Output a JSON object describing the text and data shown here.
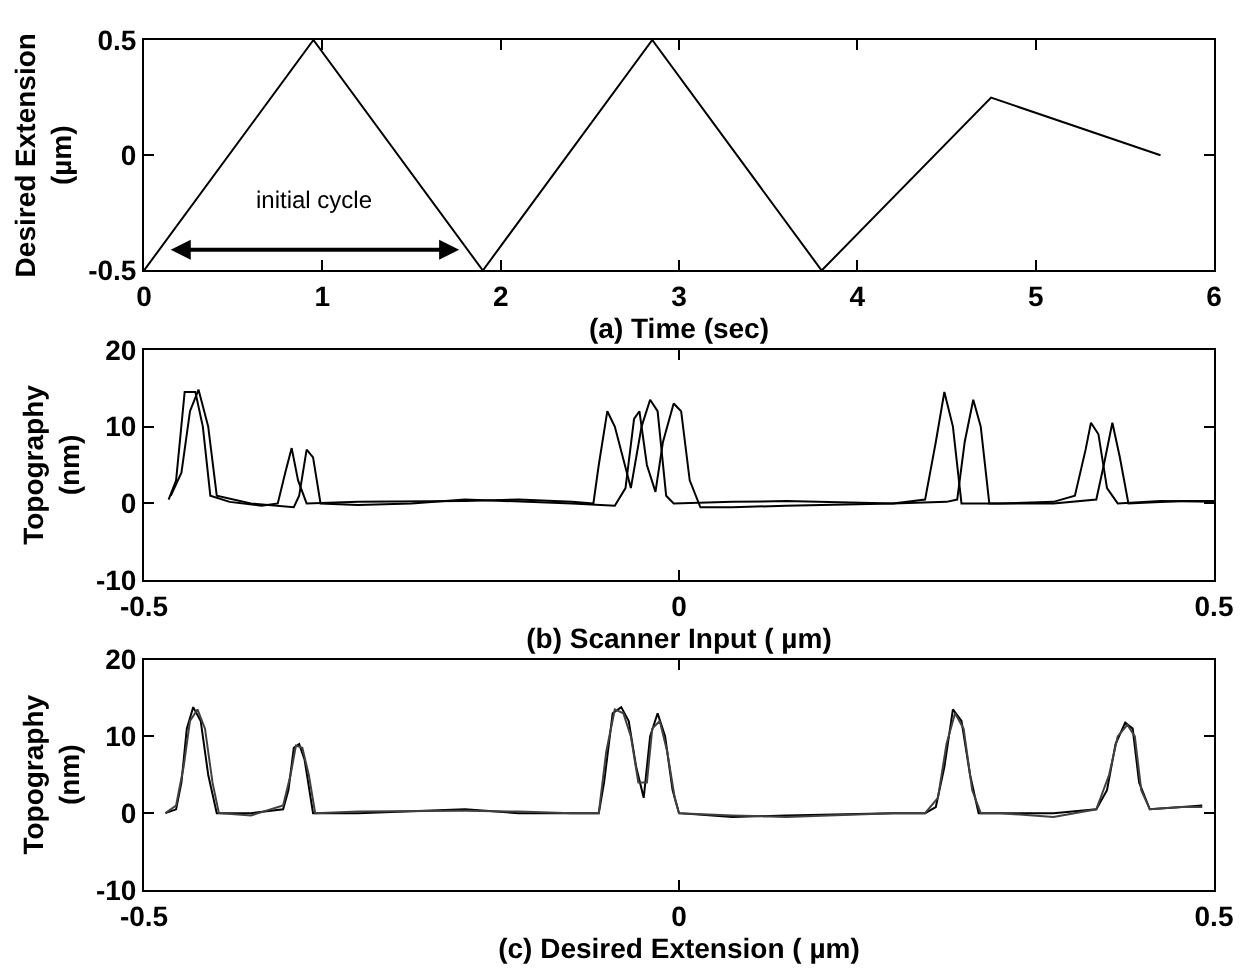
{
  "chart_data": [
    {
      "type": "line",
      "xlabel": "(a) Time (sec)",
      "ylabel": "Desired Extension\n(µm)",
      "x": [
        0,
        0.95,
        1.9,
        2.85,
        3.8,
        4.75,
        5.7
      ],
      "series": [
        {
          "color": "#000000",
          "values": [
            -0.5,
            0.5,
            -0.5,
            0.5,
            -0.5,
            0.25,
            0
          ]
        }
      ],
      "xlim": [
        0,
        6
      ],
      "xticks": [
        0,
        1,
        2,
        3,
        4,
        5,
        6
      ],
      "ylim": [
        -0.5,
        0.5
      ],
      "yticks": [
        -0.5,
        0,
        0.5
      ],
      "annotations": [
        "initial cycle"
      ],
      "marker": "none",
      "line_style": "solid"
    },
    {
      "type": "line",
      "xlabel": "(b) Scanner Input ( µm)",
      "ylabel": "Topography\n(nm)",
      "series": [
        {
          "color": "#000000",
          "x": [
            -0.477,
            -0.47,
            -0.462,
            -0.452,
            -0.445,
            -0.438,
            -0.42,
            -0.39,
            -0.375,
            -0.368,
            -0.362,
            -0.356,
            -0.348,
            -0.3,
            -0.2,
            -0.15,
            -0.1,
            -0.08,
            -0.075,
            -0.067,
            -0.06,
            -0.045,
            -0.035,
            -0.027,
            -0.02,
            -0.012,
            -0.005,
            0.05,
            0.1,
            0.2,
            0.23,
            0.24,
            0.248,
            0.256,
            0.264,
            0.3,
            0.35,
            0.37,
            0.38,
            0.385,
            0.392,
            0.4,
            0.41,
            0.45,
            0.5
          ],
          "values": [
            0.5,
            3,
            14.5,
            14.5,
            10,
            1,
            0.2,
            -0.3,
            0,
            4,
            7.2,
            3,
            0,
            0.2,
            0.3,
            0.5,
            0.2,
            0,
            5,
            12,
            10,
            2,
            10,
            13.5,
            12,
            1,
            0,
            0.2,
            0.3,
            0,
            0.5,
            8,
            14.5,
            10,
            0,
            0,
            0.2,
            1,
            7,
            10.5,
            9,
            2,
            0,
            0.3,
            0.2
          ]
        },
        {
          "color": "#000000",
          "x": [
            -0.475,
            -0.465,
            -0.457,
            -0.449,
            -0.44,
            -0.432,
            -0.4,
            -0.36,
            -0.355,
            -0.348,
            -0.342,
            -0.335,
            -0.3,
            -0.25,
            -0.2,
            -0.1,
            -0.06,
            -0.05,
            -0.042,
            -0.037,
            -0.03,
            -0.022,
            -0.015,
            -0.005,
            0.002,
            0.01,
            0.02,
            0.05,
            0.1,
            0.2,
            0.25,
            0.26,
            0.267,
            0.275,
            0.282,
            0.29,
            0.35,
            0.39,
            0.397,
            0.405,
            0.412,
            0.42,
            0.47,
            0.5
          ],
          "values": [
            1,
            4,
            12,
            14.8,
            10,
            1,
            0,
            -0.5,
            1,
            7,
            6,
            0,
            -0.2,
            0,
            0.5,
            0,
            -0.3,
            2,
            11,
            12,
            5,
            1.5,
            8,
            13,
            12,
            3,
            -0.5,
            -0.5,
            -0.3,
            0,
            0.2,
            0.5,
            8,
            13.5,
            10,
            0,
            0,
            0.5,
            5,
            10.5,
            6,
            0,
            0.3,
            0.3
          ]
        }
      ],
      "xlim": [
        -0.5,
        0.5
      ],
      "xticks": [
        -0.5,
        0,
        0.5
      ],
      "ylim": [
        -10,
        20
      ],
      "yticks": [
        -10,
        0,
        10,
        20
      ],
      "marker": "none",
      "line_style": "solid"
    },
    {
      "type": "line",
      "xlabel": "(c) Desired Extension ( µm)",
      "ylabel": "Topography\n(nm)",
      "series": [
        {
          "color": "#000000",
          "x": [
            -0.48,
            -0.47,
            -0.465,
            -0.46,
            -0.454,
            -0.447,
            -0.44,
            -0.432,
            -0.4,
            -0.37,
            -0.365,
            -0.36,
            -0.355,
            -0.35,
            -0.342,
            -0.3,
            -0.2,
            -0.15,
            -0.1,
            -0.075,
            -0.07,
            -0.062,
            -0.054,
            -0.047,
            -0.04,
            -0.033,
            -0.027,
            -0.02,
            -0.013,
            -0.006,
            0,
            0.05,
            0.1,
            0.2,
            0.23,
            0.24,
            0.248,
            0.256,
            0.264,
            0.272,
            0.28,
            0.3,
            0.35,
            0.39,
            0.4,
            0.408,
            0.417,
            0.424,
            0.43,
            0.44,
            0.47,
            0.489
          ],
          "values": [
            0,
            0.5,
            4,
            11,
            13.8,
            12,
            5,
            0,
            0,
            0.5,
            3,
            8.5,
            9,
            7,
            0,
            0,
            0.5,
            0,
            0,
            0,
            4,
            13,
            13.8,
            12,
            6,
            2,
            10,
            13,
            10,
            3,
            0,
            -0.5,
            -0.3,
            0,
            0,
            0.8,
            6,
            13.5,
            12,
            5,
            0,
            0,
            0,
            0.5,
            3,
            9,
            11.8,
            11,
            4,
            0.5,
            0.8,
            1
          ]
        },
        {
          "color": "#404040",
          "x": [
            -0.48,
            -0.47,
            -0.463,
            -0.457,
            -0.45,
            -0.443,
            -0.436,
            -0.43,
            -0.4,
            -0.37,
            -0.363,
            -0.358,
            -0.352,
            -0.346,
            -0.34,
            -0.3,
            -0.2,
            -0.15,
            -0.1,
            -0.075,
            -0.068,
            -0.06,
            -0.052,
            -0.045,
            -0.038,
            -0.03,
            -0.025,
            -0.018,
            -0.011,
            -0.004,
            0,
            0.05,
            0.1,
            0.2,
            0.23,
            0.242,
            0.25,
            0.258,
            0.266,
            0.274,
            0.282,
            0.3,
            0.35,
            0.39,
            0.402,
            0.41,
            0.419,
            0.426,
            0.432,
            0.44,
            0.47,
            0.489
          ],
          "values": [
            0,
            1,
            6,
            12,
            13.5,
            11,
            4,
            0,
            -0.3,
            1,
            5,
            8.8,
            8.5,
            5,
            0,
            0.2,
            0.3,
            0.2,
            0,
            0,
            8,
            13.5,
            13,
            10,
            4,
            4,
            11,
            12,
            8,
            2,
            0,
            -0.3,
            -0.5,
            0,
            0,
            2,
            9,
            13,
            11,
            3,
            0,
            0,
            -0.5,
            0.5,
            5,
            10,
            11.5,
            10,
            3,
            0.5,
            0.8,
            0.8
          ]
        }
      ],
      "xlim": [
        -0.5,
        0.5
      ],
      "xticks": [
        -0.5,
        0,
        0.5
      ],
      "ylim": [
        -10,
        20
      ],
      "yticks": [
        -10,
        0,
        10,
        20
      ],
      "marker": "none",
      "line_style": "solid"
    }
  ]
}
